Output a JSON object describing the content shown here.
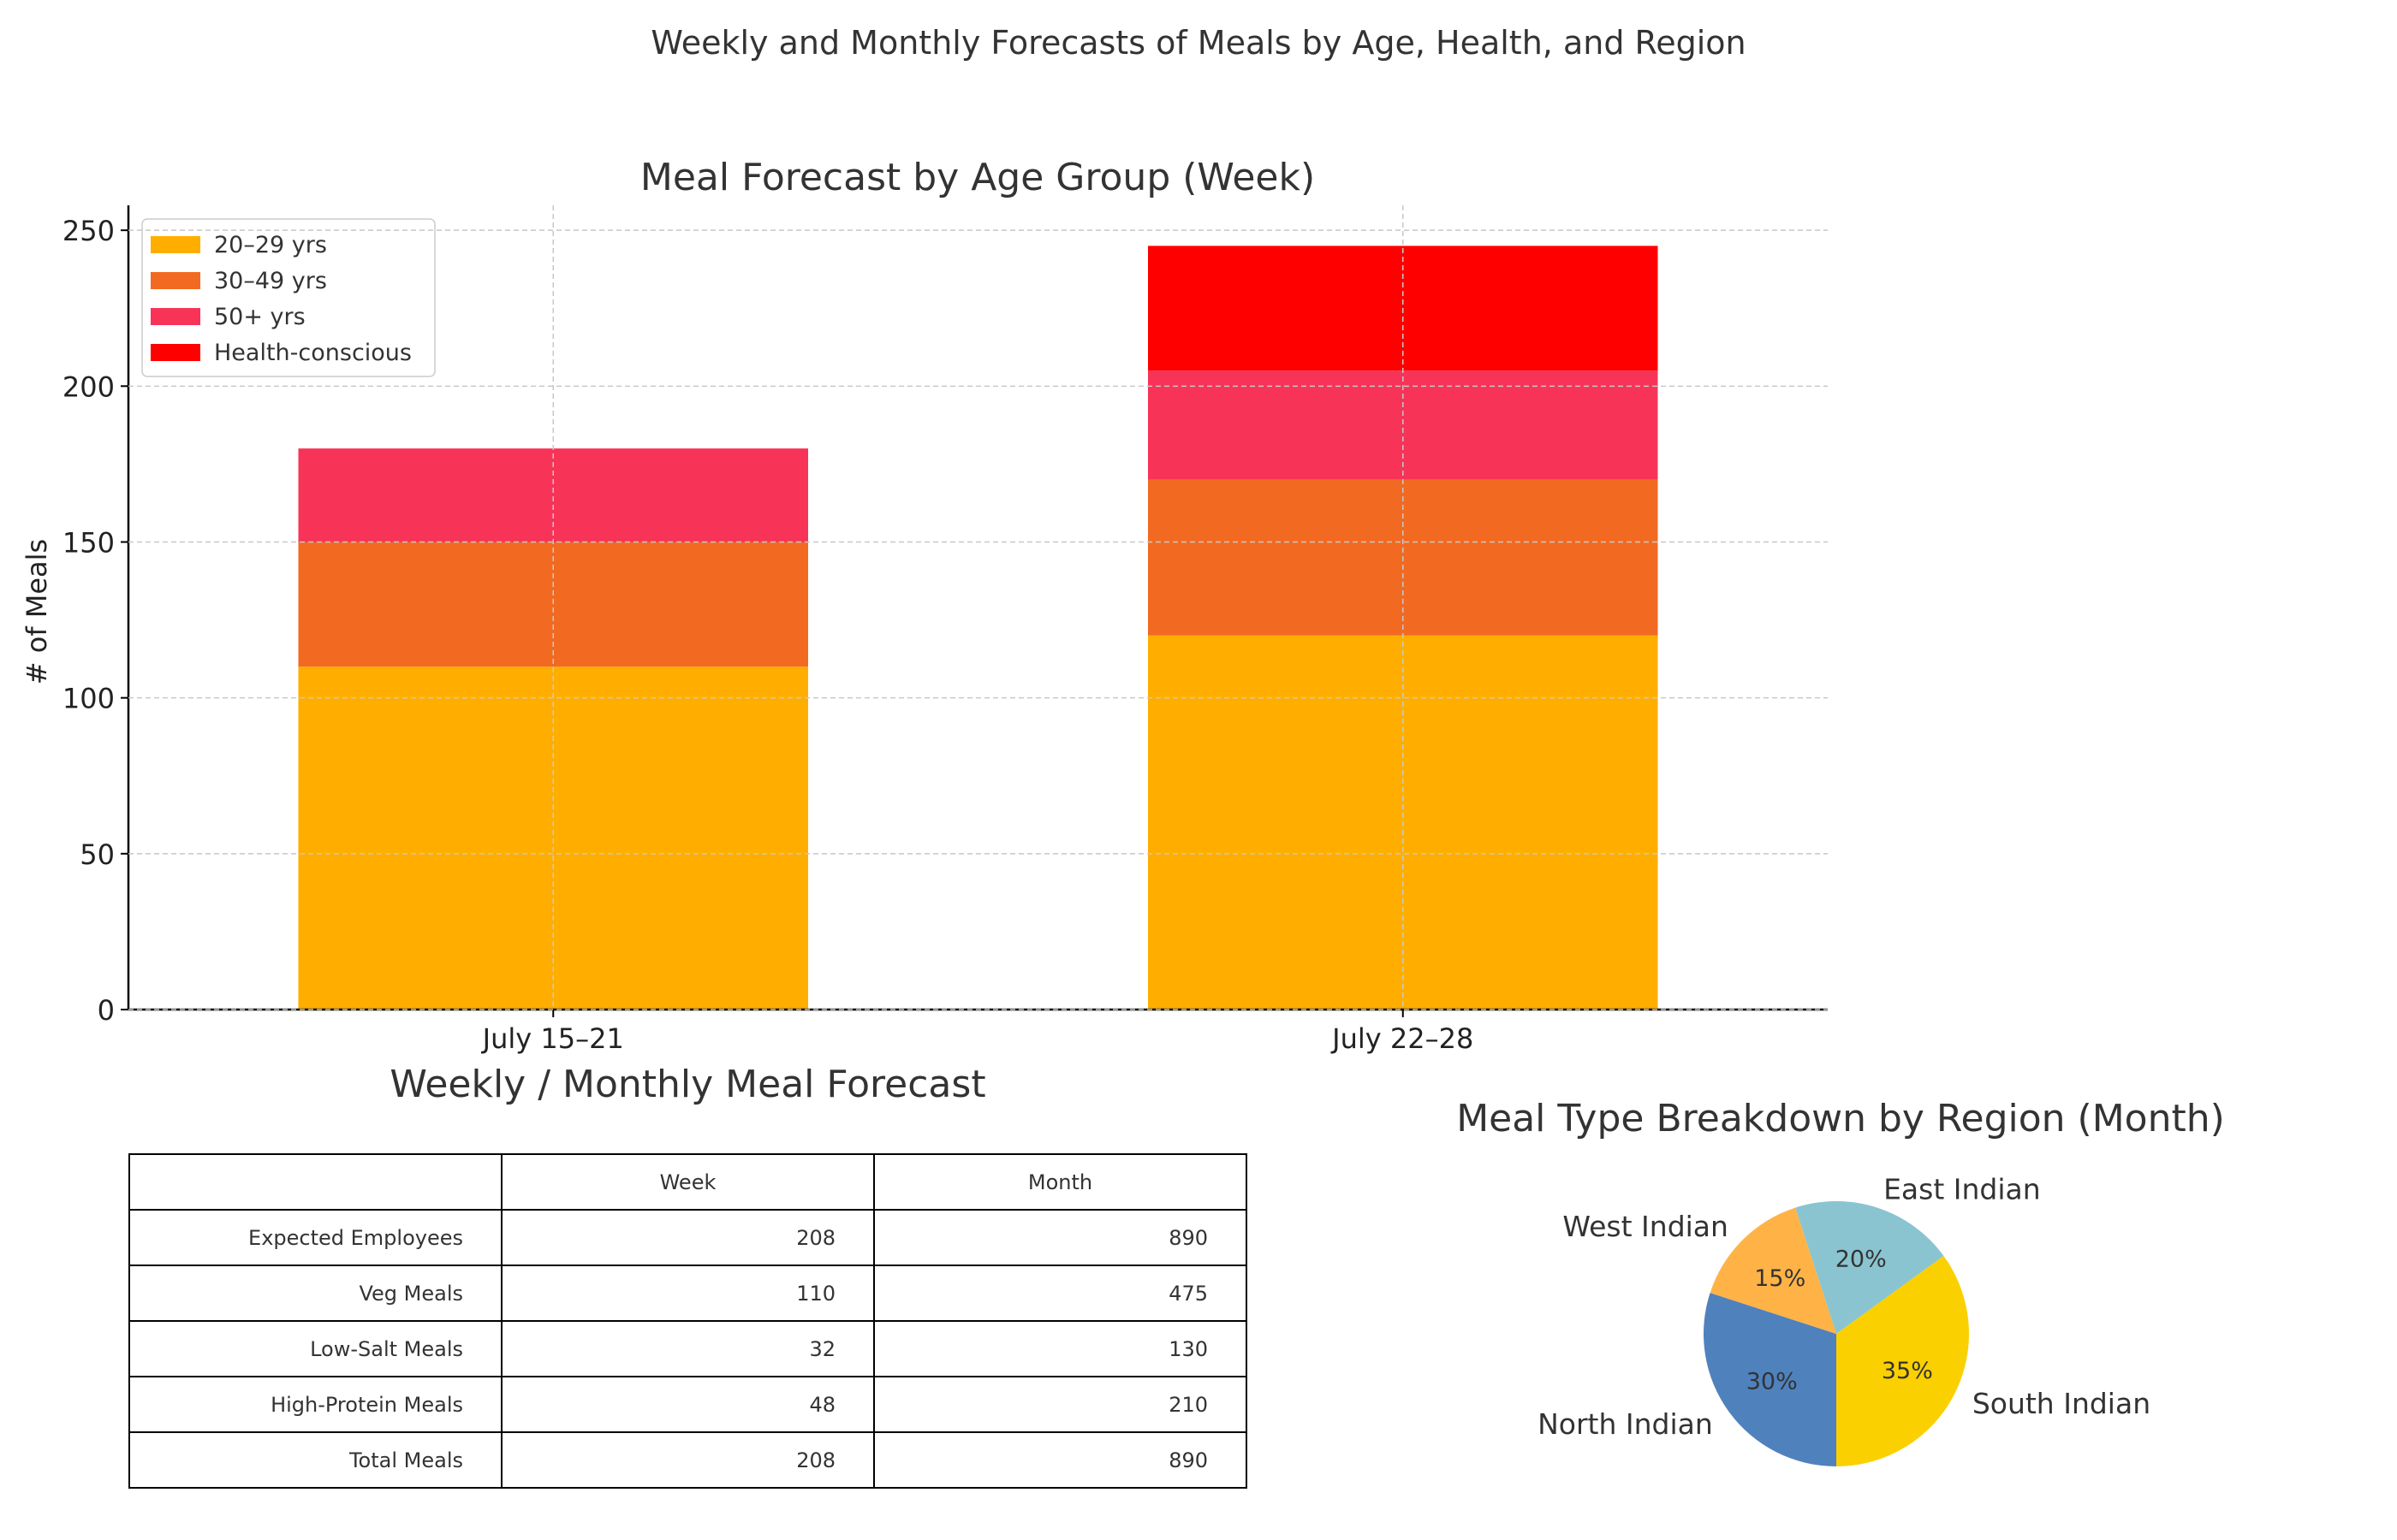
{
  "suptitle": "Weekly and Monthly Forecasts of Meals by Age, Health, and Region",
  "chart_data": [
    {
      "type": "bar",
      "stacked": true,
      "title": "Meal Forecast by Age Group (Week)",
      "xlabel": "",
      "ylabel": "# of Meals",
      "categories": [
        "July 15–21",
        "July 22–28"
      ],
      "ylim": [
        0,
        258
      ],
      "yticks": [
        0,
        50,
        100,
        150,
        200,
        250
      ],
      "grid": true,
      "legend": "top-left",
      "series": [
        {
          "name": "20–29 yrs",
          "color": "#FFAE00",
          "values": [
            110,
            120
          ]
        },
        {
          "name": "30–49 yrs",
          "color": "#F26A21",
          "values": [
            40,
            50
          ]
        },
        {
          "name": "50+ yrs",
          "color": "#F83358",
          "values": [
            30,
            35
          ]
        },
        {
          "name": "Health-conscious",
          "color": "#FF0000",
          "values": [
            0,
            40
          ]
        }
      ]
    },
    {
      "type": "table",
      "title": "Weekly / Monthly Meal Forecast",
      "columns": [
        "",
        "Week",
        "Month"
      ],
      "rows": [
        [
          "Expected Employees",
          "208",
          "890"
        ],
        [
          "Veg Meals",
          "110",
          "475"
        ],
        [
          "Low-Salt Meals",
          "32",
          "130"
        ],
        [
          "High-Protein Meals",
          "48",
          "210"
        ],
        [
          "Total Meals",
          "208",
          "890"
        ]
      ]
    },
    {
      "type": "pie",
      "title": "Meal Type Breakdown by Region (Month)",
      "slices": [
        {
          "label": "North Indian",
          "value": 30,
          "pct_label": "30%",
          "color": "#4F81BD"
        },
        {
          "label": "South Indian",
          "value": 35,
          "pct_label": "35%",
          "color": "#FAD000"
        },
        {
          "label": "East Indian",
          "value": 20,
          "pct_label": "20%",
          "color": "#8AC4D0"
        },
        {
          "label": "West Indian",
          "value": 15,
          "pct_label": "15%",
          "color": "#FFB347"
        }
      ]
    }
  ]
}
